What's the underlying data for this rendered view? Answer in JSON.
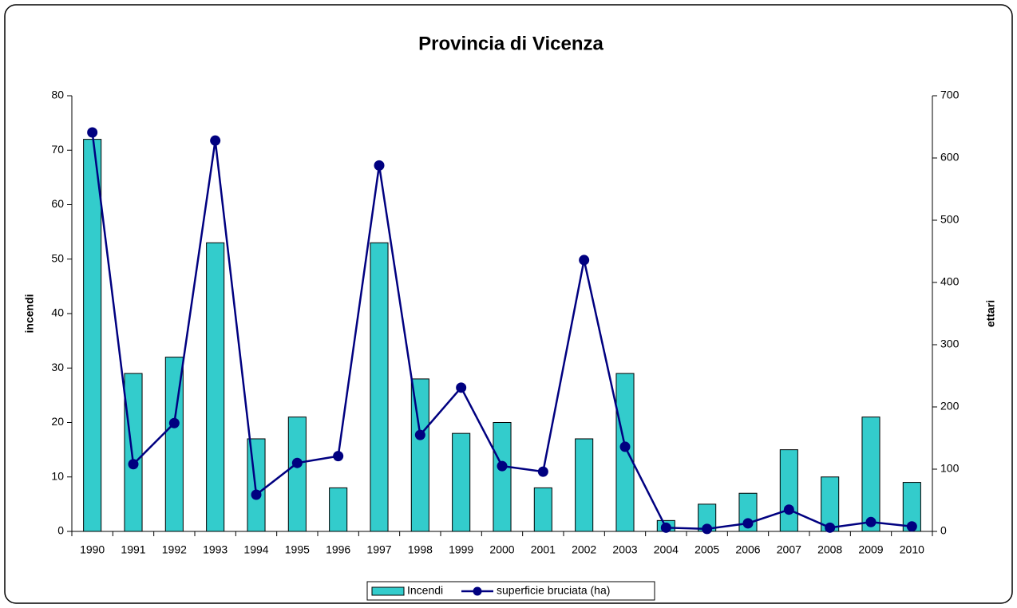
{
  "chart_data": {
    "type": "bar_line",
    "title": "Provincia di Vicenza",
    "ylabel": "incendi",
    "y2label": "ettari",
    "categories": [
      "1990",
      "1991",
      "1992",
      "1993",
      "1994",
      "1995",
      "1996",
      "1997",
      "1998",
      "1999",
      "2000",
      "2001",
      "2002",
      "2003",
      "2004",
      "2005",
      "2006",
      "2007",
      "2008",
      "2009",
      "2010"
    ],
    "series": [
      {
        "name": "Incendi",
        "type": "bar",
        "color": "#33cccc",
        "values": [
          72,
          29,
          32,
          53,
          17,
          21,
          8,
          53,
          28,
          18,
          20,
          8,
          17,
          29,
          2,
          5,
          7,
          15,
          10,
          21,
          9
        ]
      },
      {
        "name": "superficie bruciata (ha)",
        "type": "line",
        "axis": "y2",
        "color": "#000080",
        "values": [
          641,
          108,
          174,
          628,
          59,
          110,
          121,
          588,
          155,
          231,
          105,
          96,
          436,
          136,
          6,
          4,
          13,
          35,
          6,
          15,
          8
        ]
      }
    ],
    "ylim": [
      0,
      80
    ],
    "yticks": [
      0,
      10,
      20,
      30,
      40,
      50,
      60,
      70,
      80
    ],
    "y2lim": [
      0,
      700
    ],
    "y2ticks": [
      0,
      100,
      200,
      300,
      400,
      500,
      600,
      700
    ],
    "grid": false,
    "legend": "bottom"
  }
}
